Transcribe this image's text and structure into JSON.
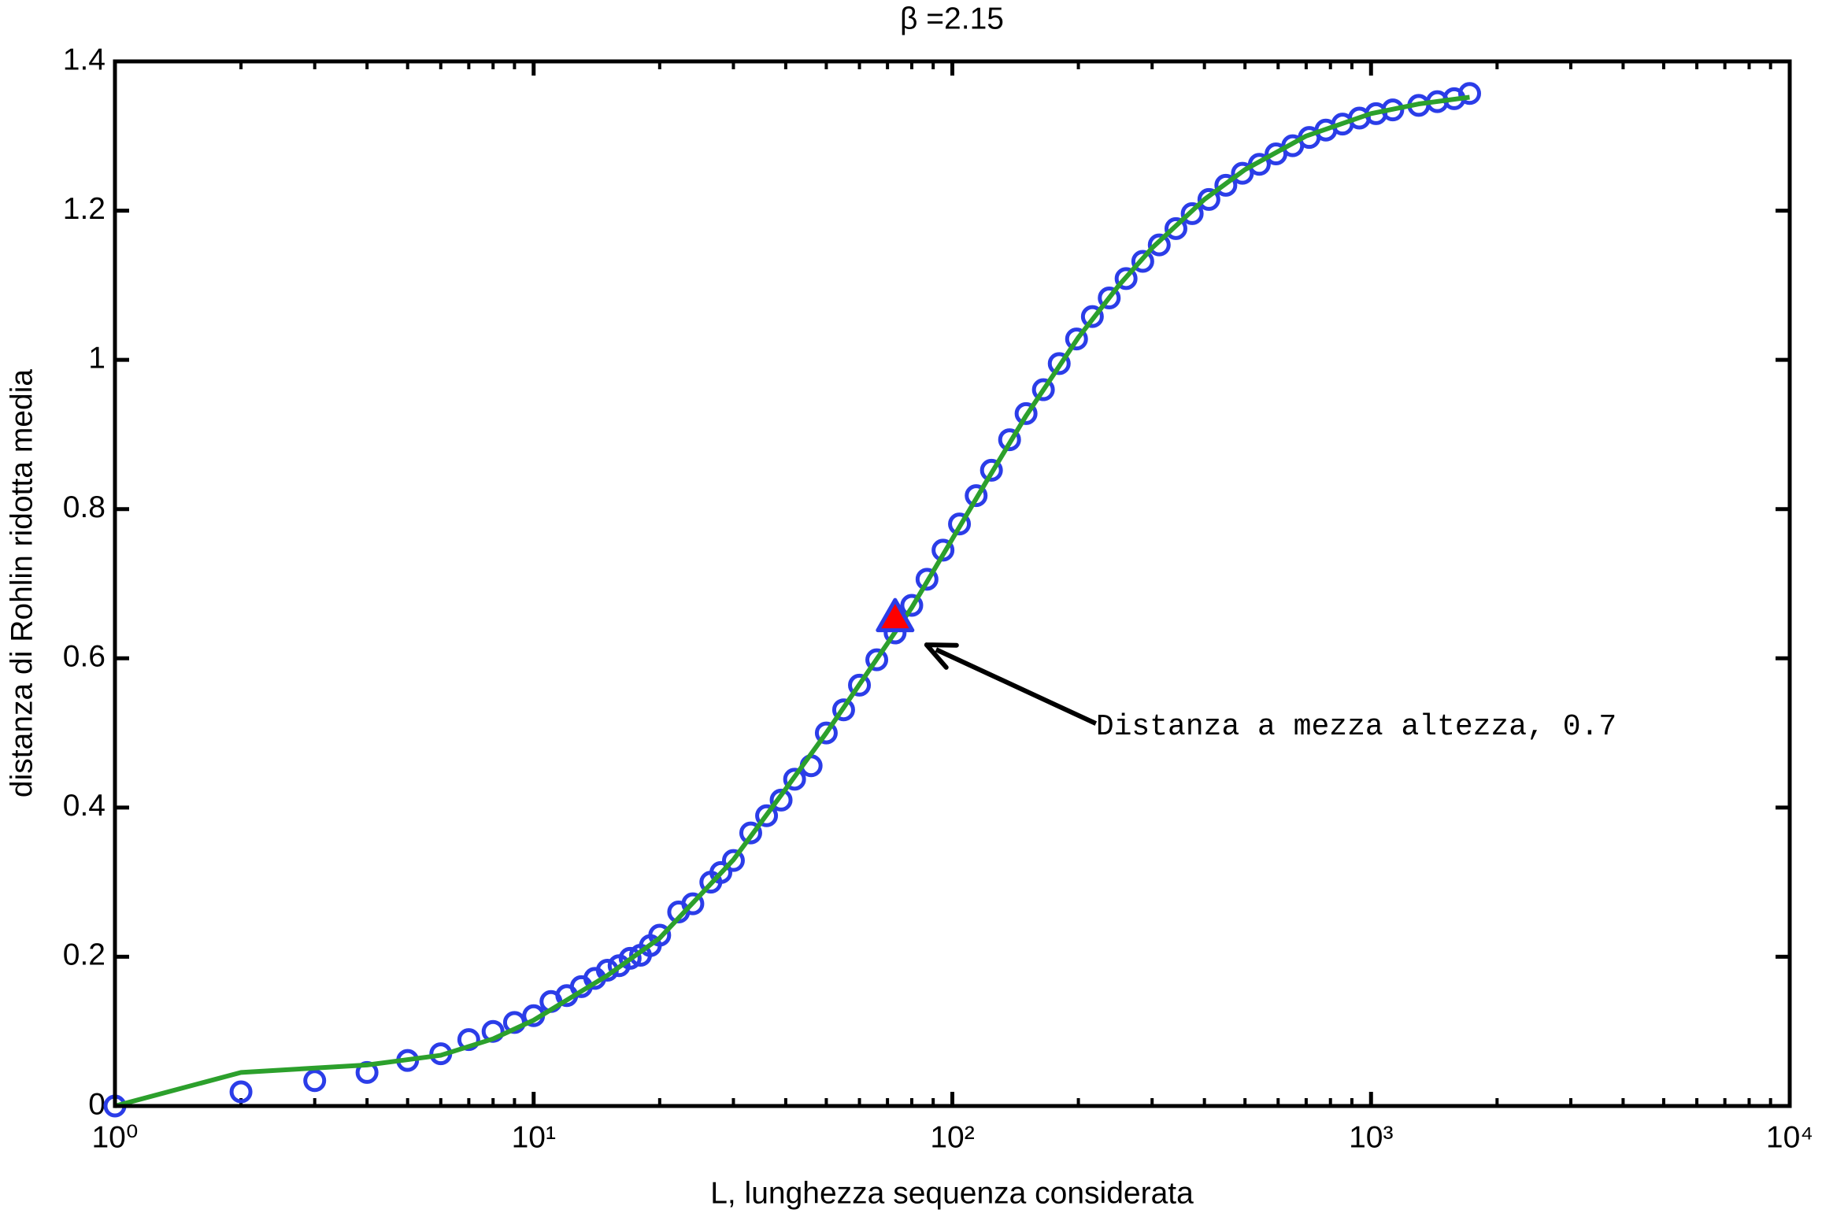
{
  "chart_data": {
    "type": "line",
    "title": "β =2.15",
    "x_label": "L, lunghezza sequenza considerata",
    "y_label": "distanza di Rohlin ridotta media",
    "x_scale": "log",
    "xlim": [
      1,
      10000
    ],
    "ylim": [
      0,
      1.4
    ],
    "xticks": [
      {
        "value": 1,
        "label": "10⁰"
      },
      {
        "value": 10,
        "label": "10¹"
      },
      {
        "value": 100,
        "label": "10²"
      },
      {
        "value": 1000,
        "label": "10³"
      },
      {
        "value": 10000,
        "label": "10⁴"
      }
    ],
    "yticks": [
      0,
      0.2,
      0.4,
      0.6,
      0.8,
      1,
      1.2,
      1.4
    ],
    "grid": false,
    "annotation": "Distanza a mezza altezza, 0.7",
    "series": [
      {
        "marker": "circle",
        "color": "#2b3de8",
        "x": [
          1,
          2,
          3,
          4,
          5,
          6,
          7,
          8,
          9,
          10,
          11,
          12,
          13,
          14,
          15,
          16,
          17,
          18,
          19,
          20,
          22.2,
          24,
          26.5,
          28,
          30,
          33,
          36,
          39,
          42,
          46,
          50,
          55,
          60,
          66,
          73,
          80,
          87,
          95,
          104,
          114,
          124,
          137,
          150,
          165,
          180,
          198,
          216,
          237,
          260,
          285,
          312,
          342,
          374,
          410,
          450,
          493,
          541,
          593,
          650,
          712,
          780,
          855,
          938,
          1028,
          1127,
          1300,
          1440,
          1580,
          1720
        ],
        "values": [
          0,
          0.019,
          0.034,
          0.045,
          0.061,
          0.07,
          0.089,
          0.1,
          0.112,
          0.121,
          0.14,
          0.148,
          0.16,
          0.171,
          0.182,
          0.188,
          0.198,
          0.202,
          0.215,
          0.229,
          0.26,
          0.271,
          0.3,
          0.313,
          0.329,
          0.366,
          0.389,
          0.41,
          0.438,
          0.456,
          0.5,
          0.531,
          0.564,
          0.598,
          0.634,
          0.671,
          0.706,
          0.745,
          0.78,
          0.818,
          0.852,
          0.893,
          0.928,
          0.96,
          0.995,
          1.028,
          1.058,
          1.083,
          1.109,
          1.132,
          1.154,
          1.176,
          1.196,
          1.215,
          1.234,
          1.25,
          1.262,
          1.276,
          1.287,
          1.298,
          1.308,
          1.316,
          1.324,
          1.33,
          1.335,
          1.341,
          1.346,
          1.35,
          1.357
        ]
      },
      {
        "marker": "none",
        "color": "#2ca02c",
        "x": [
          1,
          2,
          4,
          6,
          8,
          10,
          15,
          20,
          30,
          40,
          50,
          60,
          70,
          80,
          100,
          120,
          150,
          200,
          250,
          300,
          400,
          500,
          700,
          1000,
          1300,
          1720
        ],
        "values": [
          0,
          0.045,
          0.055,
          0.068,
          0.09,
          0.115,
          0.175,
          0.225,
          0.33,
          0.425,
          0.5,
          0.565,
          0.62,
          0.668,
          0.76,
          0.835,
          0.925,
          1.03,
          1.1,
          1.15,
          1.215,
          1.255,
          1.3,
          1.33,
          1.343,
          1.352
        ]
      },
      {
        "marker": "triangle",
        "color": "#ff0000",
        "edgecolor": "#2b3de8",
        "x": [
          73
        ],
        "values": [
          0.655
        ]
      }
    ]
  }
}
